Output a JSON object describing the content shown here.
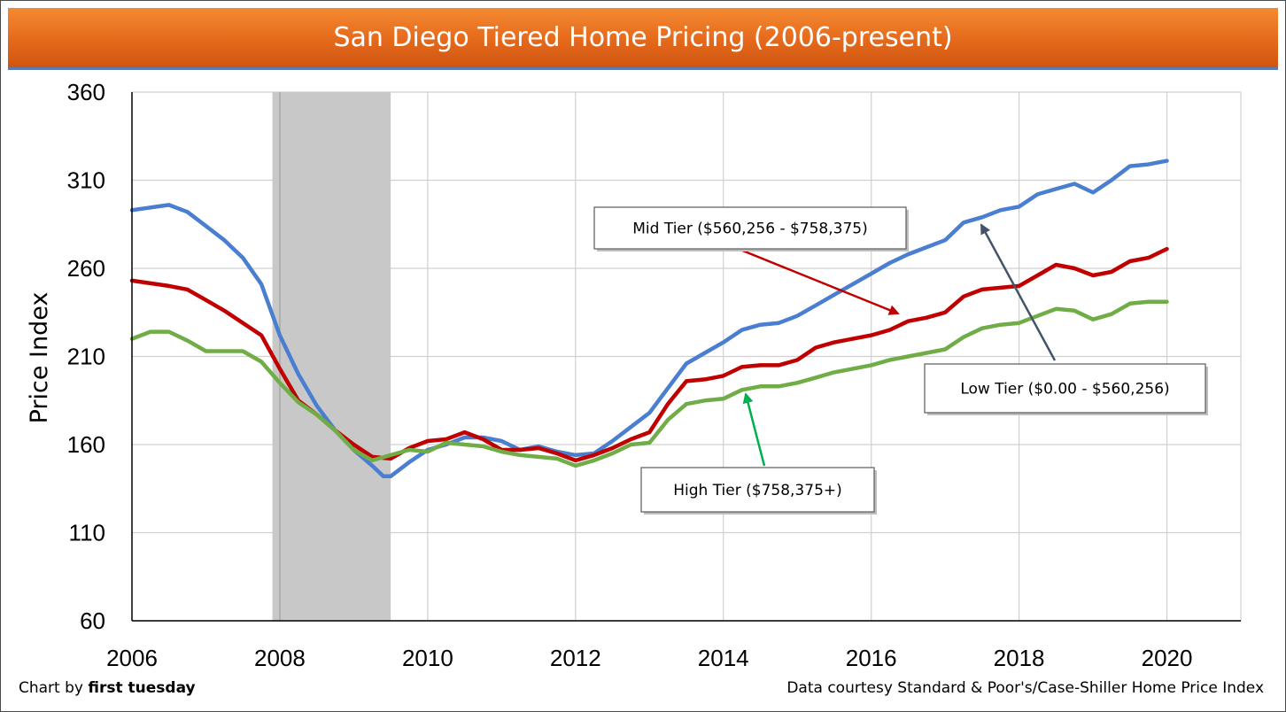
{
  "title": "San Diego Tiered Home Pricing (2006-present)",
  "footer_left_prefix": "Chart by ",
  "footer_left_brand": "first tuesday",
  "footer_right": "Data courtesy Standard & Poor's/Case-Shiller Home Price Index",
  "colors": {
    "low": "#4a7ed0",
    "mid": "#c00000",
    "high": "#70ad47",
    "recession": "#c8c8c8",
    "title_bg": "#e8701f"
  },
  "chart_data": {
    "type": "line",
    "title": "San Diego Tiered Home Pricing (2006-present)",
    "xlabel": "",
    "ylabel": "Price Index",
    "xlim": [
      2006,
      2021
    ],
    "ylim": [
      60,
      360
    ],
    "x_ticks": [
      "2006",
      "2008",
      "2010",
      "2012",
      "2014",
      "2016",
      "2018",
      "2020"
    ],
    "y_ticks": [
      "60",
      "110",
      "160",
      "210",
      "260",
      "310",
      "360"
    ],
    "grid": true,
    "recession_band": [
      2007.9,
      2009.5
    ],
    "series": [
      {
        "name": "Low Tier",
        "color": "#4a7ed0",
        "points": [
          [
            2006,
            293
          ],
          [
            2006.5,
            296
          ],
          [
            2006.75,
            292
          ],
          [
            2007,
            284
          ],
          [
            2007.25,
            276
          ],
          [
            2007.5,
            266
          ],
          [
            2007.75,
            251
          ],
          [
            2008,
            222
          ],
          [
            2008.25,
            200
          ],
          [
            2008.5,
            182
          ],
          [
            2008.75,
            168
          ],
          [
            2009,
            157
          ],
          [
            2009.25,
            148
          ],
          [
            2009.4,
            142
          ],
          [
            2009.5,
            142
          ],
          [
            2009.75,
            150
          ],
          [
            2010,
            157
          ],
          [
            2010.25,
            160
          ],
          [
            2010.5,
            164
          ],
          [
            2010.75,
            164
          ],
          [
            2011,
            162
          ],
          [
            2011.25,
            157
          ],
          [
            2011.5,
            159
          ],
          [
            2011.75,
            156
          ],
          [
            2012,
            154
          ],
          [
            2012.25,
            155
          ],
          [
            2012.5,
            162
          ],
          [
            2012.75,
            170
          ],
          [
            2013,
            178
          ],
          [
            2013.25,
            192
          ],
          [
            2013.5,
            206
          ],
          [
            2013.75,
            212
          ],
          [
            2014,
            218
          ],
          [
            2014.25,
            225
          ],
          [
            2014.5,
            228
          ],
          [
            2014.75,
            229
          ],
          [
            2015,
            233
          ],
          [
            2015.25,
            239
          ],
          [
            2015.5,
            245
          ],
          [
            2015.75,
            251
          ],
          [
            2016,
            257
          ],
          [
            2016.25,
            263
          ],
          [
            2016.5,
            268
          ],
          [
            2016.75,
            272
          ],
          [
            2017,
            276
          ],
          [
            2017.25,
            286
          ],
          [
            2017.5,
            289
          ],
          [
            2017.75,
            293
          ],
          [
            2018,
            295
          ],
          [
            2018.25,
            302
          ],
          [
            2018.5,
            305
          ],
          [
            2018.75,
            308
          ],
          [
            2019,
            303
          ],
          [
            2019.25,
            310
          ],
          [
            2019.5,
            318
          ],
          [
            2019.75,
            319
          ],
          [
            2020,
            321
          ]
        ]
      },
      {
        "name": "Mid Tier",
        "color": "#c00000",
        "points": [
          [
            2006,
            253
          ],
          [
            2006.5,
            250
          ],
          [
            2006.75,
            248
          ],
          [
            2007,
            242
          ],
          [
            2007.25,
            236
          ],
          [
            2007.5,
            229
          ],
          [
            2007.75,
            222
          ],
          [
            2008,
            203
          ],
          [
            2008.25,
            185
          ],
          [
            2008.5,
            177
          ],
          [
            2008.75,
            168
          ],
          [
            2009,
            160
          ],
          [
            2009.25,
            153
          ],
          [
            2009.5,
            152
          ],
          [
            2009.75,
            158
          ],
          [
            2010,
            162
          ],
          [
            2010.25,
            163
          ],
          [
            2010.5,
            167
          ],
          [
            2010.75,
            163
          ],
          [
            2011,
            157
          ],
          [
            2011.25,
            157
          ],
          [
            2011.5,
            158
          ],
          [
            2011.75,
            155
          ],
          [
            2012,
            151
          ],
          [
            2012.25,
            154
          ],
          [
            2012.5,
            158
          ],
          [
            2012.75,
            163
          ],
          [
            2013,
            167
          ],
          [
            2013.25,
            183
          ],
          [
            2013.5,
            196
          ],
          [
            2013.75,
            197
          ],
          [
            2014,
            199
          ],
          [
            2014.25,
            204
          ],
          [
            2014.5,
            205
          ],
          [
            2014.75,
            205
          ],
          [
            2015,
            208
          ],
          [
            2015.25,
            215
          ],
          [
            2015.5,
            218
          ],
          [
            2015.75,
            220
          ],
          [
            2016,
            222
          ],
          [
            2016.25,
            225
          ],
          [
            2016.5,
            230
          ],
          [
            2016.75,
            232
          ],
          [
            2017,
            235
          ],
          [
            2017.25,
            244
          ],
          [
            2017.5,
            248
          ],
          [
            2017.75,
            249
          ],
          [
            2018,
            250
          ],
          [
            2018.25,
            256
          ],
          [
            2018.5,
            262
          ],
          [
            2018.75,
            260
          ],
          [
            2019,
            256
          ],
          [
            2019.25,
            258
          ],
          [
            2019.5,
            264
          ],
          [
            2019.75,
            266
          ],
          [
            2020,
            271
          ]
        ]
      },
      {
        "name": "High Tier",
        "color": "#70ad47",
        "points": [
          [
            2006,
            220
          ],
          [
            2006.25,
            224
          ],
          [
            2006.5,
            224
          ],
          [
            2006.75,
            219
          ],
          [
            2007,
            213
          ],
          [
            2007.25,
            213
          ],
          [
            2007.5,
            213
          ],
          [
            2007.75,
            207
          ],
          [
            2008,
            195
          ],
          [
            2008.25,
            184
          ],
          [
            2008.5,
            177
          ],
          [
            2008.75,
            168
          ],
          [
            2009,
            157
          ],
          [
            2009.25,
            151
          ],
          [
            2009.5,
            154
          ],
          [
            2009.75,
            157
          ],
          [
            2010,
            156
          ],
          [
            2010.25,
            161
          ],
          [
            2010.5,
            160
          ],
          [
            2010.75,
            159
          ],
          [
            2011,
            156
          ],
          [
            2011.25,
            154
          ],
          [
            2011.5,
            153
          ],
          [
            2011.75,
            152
          ],
          [
            2012,
            148
          ],
          [
            2012.25,
            151
          ],
          [
            2012.5,
            155
          ],
          [
            2012.75,
            160
          ],
          [
            2013,
            161
          ],
          [
            2013.25,
            174
          ],
          [
            2013.5,
            183
          ],
          [
            2013.75,
            185
          ],
          [
            2014,
            186
          ],
          [
            2014.25,
            191
          ],
          [
            2014.5,
            193
          ],
          [
            2014.75,
            193
          ],
          [
            2015,
            195
          ],
          [
            2015.25,
            198
          ],
          [
            2015.5,
            201
          ],
          [
            2015.75,
            203
          ],
          [
            2016,
            205
          ],
          [
            2016.25,
            208
          ],
          [
            2016.5,
            210
          ],
          [
            2016.75,
            212
          ],
          [
            2017,
            214
          ],
          [
            2017.25,
            221
          ],
          [
            2017.5,
            226
          ],
          [
            2017.75,
            228
          ],
          [
            2018,
            229
          ],
          [
            2018.25,
            233
          ],
          [
            2018.5,
            237
          ],
          [
            2018.75,
            236
          ],
          [
            2019,
            231
          ],
          [
            2019.25,
            234
          ],
          [
            2019.5,
            240
          ],
          [
            2019.75,
            241
          ],
          [
            2020,
            241
          ]
        ]
      }
    ],
    "annotations": [
      {
        "label": "Mid Tier ($560,256 - $758,375)",
        "series": "Mid Tier"
      },
      {
        "label": "Low Tier ($0.00 - $560,256)",
        "series": "Low Tier"
      },
      {
        "label": "High Tier ($758,375+)",
        "series": "High Tier"
      }
    ]
  }
}
